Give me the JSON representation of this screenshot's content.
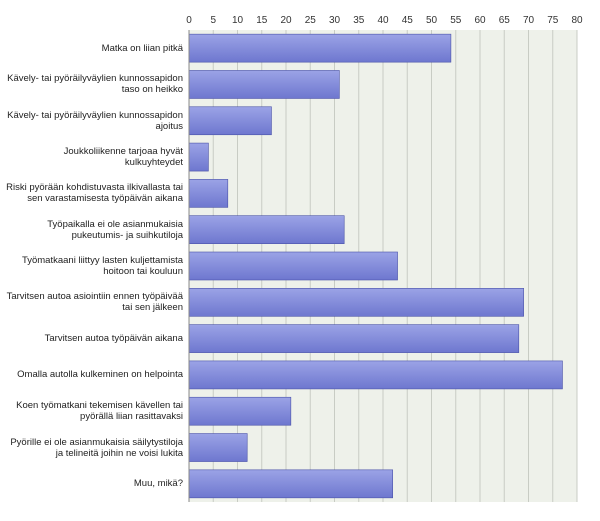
{
  "chart_data": {
    "type": "bar",
    "orientation": "horizontal",
    "categories": [
      "Matka on liian pitkä",
      "Kävely- tai pyöräilyväylien kunnossapidon taso on heikko",
      "Kävely- tai pyöräilyväylien kunnossapidon ajoitus",
      "Joukkoliikenne tarjoaa hyvät kulkuyhteydet",
      "Riski pyörään kohdistuvasta ilkivallasta tai sen varastamisesta työpäivän aikana",
      "Työpaikalla ei ole asianmukaisia pukeutumis- ja suihkutiloja",
      "Työmatkaani liittyy lasten kuljettamista hoitoon tai kouluun",
      "Tarvitsen autoa asiointiin ennen työpäivää tai sen jälkeen",
      "Tarvitsen autoa työpäivän aikana",
      "Omalla autolla kulkeminen on helpointa",
      "Koen työmatkani tekemisen kävellen tai pyörällä liian rasittavaksi",
      "Pyörille ei ole asianmukaisia säilytystiloja ja telineitä joihin ne voisi lukita",
      "Muu, mikä?"
    ],
    "values": [
      54,
      31,
      17,
      4,
      8,
      32,
      43,
      69,
      68,
      77,
      21,
      12,
      42
    ],
    "xlim": [
      0,
      80
    ],
    "xticks": [
      0,
      5,
      10,
      15,
      20,
      25,
      30,
      35,
      40,
      45,
      50,
      55,
      60,
      65,
      70,
      75,
      80
    ],
    "axis_position": "top",
    "grid": true,
    "legend": "none",
    "colors": {
      "bar_fill_top": "#9ba3e6",
      "bar_fill_bottom": "#6e77cf",
      "bar_stroke": "#4a52a8",
      "plot_background": "#eef1ea",
      "grid_line": "#c8ccc4"
    }
  }
}
